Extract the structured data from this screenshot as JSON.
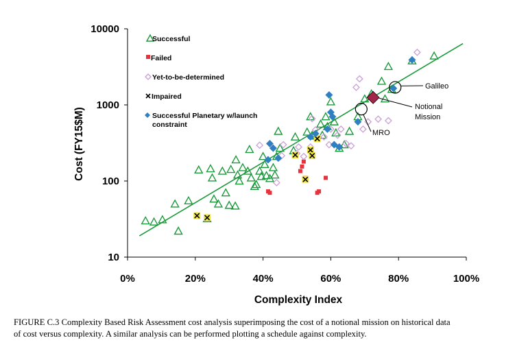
{
  "chart_data": {
    "type": "scatter",
    "xlabel": "Complexity Index",
    "ylabel": "Cost (FY15$M)",
    "x_scale": "linear",
    "y_scale": "log",
    "xlim": [
      0,
      1
    ],
    "ylim": [
      10,
      10000
    ],
    "x_ticks": [
      {
        "value": 0.0,
        "label": "0%"
      },
      {
        "value": 0.2,
        "label": "20%"
      },
      {
        "value": 0.4,
        "label": "40%"
      },
      {
        "value": 0.6,
        "label": "60%"
      },
      {
        "value": 0.8,
        "label": "80%"
      },
      {
        "value": 1.0,
        "label": "100%"
      }
    ],
    "y_ticks": [
      {
        "value": 10,
        "label": "10"
      },
      {
        "value": 100,
        "label": "100"
      },
      {
        "value": 1000,
        "label": "1000"
      },
      {
        "value": 10000,
        "label": "10000"
      }
    ],
    "legend_position": "top-left",
    "trendline": {
      "x": [
        0.035,
        0.99
      ],
      "y": [
        19,
        6400
      ],
      "color": "#1a9a3a"
    },
    "series": [
      {
        "name": "Successful",
        "marker": "triangle",
        "color": "#1a9a3a",
        "points": [
          [
            0.053,
            30
          ],
          [
            0.078,
            29
          ],
          [
            0.103,
            31
          ],
          [
            0.14,
            50
          ],
          [
            0.15,
            22
          ],
          [
            0.18,
            55
          ],
          [
            0.21,
            140
          ],
          [
            0.235,
            32
          ],
          [
            0.245,
            145
          ],
          [
            0.25,
            110
          ],
          [
            0.255,
            58
          ],
          [
            0.268,
            50
          ],
          [
            0.28,
            135
          ],
          [
            0.29,
            70
          ],
          [
            0.3,
            48
          ],
          [
            0.305,
            142
          ],
          [
            0.318,
            47
          ],
          [
            0.32,
            190
          ],
          [
            0.325,
            120
          ],
          [
            0.33,
            100
          ],
          [
            0.34,
            150
          ],
          [
            0.355,
            135
          ],
          [
            0.36,
            260
          ],
          [
            0.365,
            110
          ],
          [
            0.375,
            85
          ],
          [
            0.38,
            90
          ],
          [
            0.39,
            135
          ],
          [
            0.395,
            115
          ],
          [
            0.4,
            210
          ],
          [
            0.405,
            165
          ],
          [
            0.41,
            118
          ],
          [
            0.42,
            108
          ],
          [
            0.43,
            150
          ],
          [
            0.435,
            120
          ],
          [
            0.44,
            210
          ],
          [
            0.445,
            450
          ],
          [
            0.45,
            270
          ],
          [
            0.49,
            250
          ],
          [
            0.495,
            380
          ],
          [
            0.53,
            440
          ],
          [
            0.54,
            700
          ],
          [
            0.545,
            400
          ],
          [
            0.55,
            390
          ],
          [
            0.57,
            560
          ],
          [
            0.575,
            400
          ],
          [
            0.585,
            700
          ],
          [
            0.59,
            520
          ],
          [
            0.6,
            1100
          ],
          [
            0.61,
            600
          ],
          [
            0.615,
            430
          ],
          [
            0.625,
            270
          ],
          [
            0.64,
            300
          ],
          [
            0.655,
            450
          ],
          [
            0.68,
            700
          ],
          [
            0.7,
            1200
          ],
          [
            0.72,
            1400
          ],
          [
            0.75,
            2050
          ],
          [
            0.76,
            1200
          ],
          [
            0.77,
            3200
          ],
          [
            0.78,
            1600
          ],
          [
            0.84,
            3800
          ],
          [
            0.905,
            4400
          ]
        ]
      },
      {
        "name": "Failed",
        "marker": "square",
        "color": "#e8323c",
        "points": [
          [
            0.415,
            73
          ],
          [
            0.42,
            70
          ],
          [
            0.51,
            135
          ],
          [
            0.515,
            155
          ],
          [
            0.52,
            180
          ],
          [
            0.525,
            110
          ],
          [
            0.56,
            70
          ],
          [
            0.565,
            73
          ],
          [
            0.585,
            110
          ]
        ]
      },
      {
        "name": "Yet-to-be-determined",
        "marker": "diamond",
        "color": "#c9a0d6",
        "points": [
          [
            0.39,
            295
          ],
          [
            0.44,
            95
          ],
          [
            0.455,
            215
          ],
          [
            0.46,
            300
          ],
          [
            0.5,
            230
          ],
          [
            0.505,
            280
          ],
          [
            0.52,
            210
          ],
          [
            0.54,
            280
          ],
          [
            0.545,
            660
          ],
          [
            0.555,
            470
          ],
          [
            0.58,
            380
          ],
          [
            0.595,
            300
          ],
          [
            0.6,
            480
          ],
          [
            0.62,
            400
          ],
          [
            0.63,
            480
          ],
          [
            0.645,
            310
          ],
          [
            0.66,
            290
          ],
          [
            0.675,
            1700
          ],
          [
            0.685,
            2200
          ],
          [
            0.695,
            480
          ],
          [
            0.71,
            600
          ],
          [
            0.74,
            650
          ],
          [
            0.77,
            620
          ],
          [
            0.855,
            4900
          ]
        ]
      },
      {
        "name": "Impaired",
        "marker": "x-square",
        "color": "#f0e442",
        "points": [
          [
            0.205,
            35
          ],
          [
            0.235,
            33
          ],
          [
            0.495,
            220
          ],
          [
            0.525,
            105
          ],
          [
            0.54,
            255
          ],
          [
            0.545,
            215
          ],
          [
            0.56,
            360
          ]
        ]
      },
      {
        "name": "Successful Planetary w/launch constraint",
        "marker": "diamond",
        "color": "#2f7fc1",
        "points": [
          [
            0.415,
            190
          ],
          [
            0.42,
            310
          ],
          [
            0.43,
            270
          ],
          [
            0.445,
            200
          ],
          [
            0.54,
            380
          ],
          [
            0.555,
            420
          ],
          [
            0.59,
            480
          ],
          [
            0.595,
            1350
          ],
          [
            0.6,
            800
          ],
          [
            0.605,
            700
          ],
          [
            0.61,
            300
          ],
          [
            0.625,
            280
          ],
          [
            0.68,
            600
          ],
          [
            0.785,
            1650
          ],
          [
            0.84,
            3900
          ]
        ]
      }
    ],
    "annotations": [
      {
        "label": "Galileo",
        "x": 0.79,
        "y": 1700,
        "marker": "circle"
      },
      {
        "label": "Notional",
        "label2": "Mission",
        "x": 0.725,
        "y": 1250,
        "marker": "big-diamond",
        "color": "#a3264a"
      },
      {
        "label": "MRO",
        "x": 0.69,
        "y": 880,
        "marker": "circle"
      }
    ]
  },
  "legend": {
    "successful": "Successful",
    "failed": "Failed",
    "tbd": "Yet-to-be-determined",
    "impaired": "Impaired",
    "planetary_line1": "Successful Planetary w/launch",
    "planetary_line2": "constraint"
  },
  "caption": {
    "line1": "FIGURE C.3  Complexity Based Risk Assessment cost analysis superimposing the cost of a notional mission on historical data",
    "line2": "of cost versus complexity. A similar analysis can be performed plotting a schedule against complexity."
  }
}
